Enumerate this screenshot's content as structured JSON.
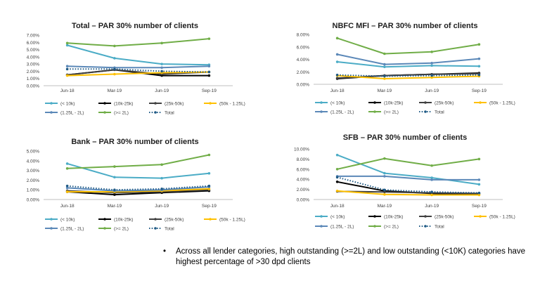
{
  "chart_data": [
    {
      "type": "line",
      "title": "Total – PAR 30% number of clients",
      "categories": [
        "Jun-18",
        "Mar-19",
        "Jun-19",
        "Sep-19"
      ],
      "y_ticks": [
        "0.00%",
        "1.00%",
        "2.00%",
        "3.00%",
        "4.00%",
        "5.00%",
        "6.00%",
        "7.00%"
      ],
      "ylim": [
        0,
        7
      ],
      "series": [
        {
          "name": "(< 10k)",
          "color": "#4bacc6",
          "style": "solid",
          "values": [
            5.6,
            3.8,
            3.0,
            2.9
          ]
        },
        {
          "name": "(10k-25k)",
          "color": "#000000",
          "style": "solid",
          "values": [
            1.5,
            2.2,
            1.4,
            1.4
          ]
        },
        {
          "name": "(25k-50k)",
          "color": "#404040",
          "style": "solid",
          "values": [
            1.5,
            2.2,
            1.6,
            1.9
          ]
        },
        {
          "name": "(50k - 1.25L)",
          "color": "#ffc000",
          "style": "solid",
          "values": [
            1.4,
            1.6,
            1.8,
            1.9
          ]
        },
        {
          "name": "(1.25L - 2L)",
          "color": "#5b88b8",
          "style": "solid",
          "values": [
            2.7,
            2.5,
            2.5,
            2.7
          ]
        },
        {
          "name": "(>= 2L)",
          "color": "#70ad47",
          "style": "solid",
          "values": [
            5.9,
            5.5,
            5.9,
            6.5
          ]
        },
        {
          "name": "Total",
          "color": "#1f5a85",
          "style": "dotted",
          "values": [
            2.3,
            2.3,
            2.0,
            1.9
          ]
        }
      ]
    },
    {
      "type": "line",
      "title": "NBFC MFI – PAR 30% number of clients",
      "categories": [
        "Jun-18",
        "Mar-19",
        "Jun-19",
        "Sep-19"
      ],
      "y_ticks": [
        "0.00%",
        "2.00%",
        "4.00%",
        "6.00%",
        "8.00%"
      ],
      "ylim": [
        0,
        8
      ],
      "series": [
        {
          "name": "(< 10k)",
          "color": "#4bacc6",
          "style": "solid",
          "values": [
            3.6,
            2.8,
            3.0,
            2.9
          ]
        },
        {
          "name": "(10k-25k)",
          "color": "#000000",
          "style": "solid",
          "values": [
            0.9,
            1.4,
            1.6,
            1.8
          ]
        },
        {
          "name": "(25k-50k)",
          "color": "#404040",
          "style": "solid",
          "values": [
            1.0,
            1.4,
            1.6,
            1.7
          ]
        },
        {
          "name": "(50k - 1.25L)",
          "color": "#ffc000",
          "style": "solid",
          "values": [
            1.4,
            0.9,
            1.1,
            1.3
          ]
        },
        {
          "name": "(1.25L - 2L)",
          "color": "#5b88b8",
          "style": "solid",
          "values": [
            4.8,
            3.2,
            3.4,
            4.1
          ]
        },
        {
          "name": "(>= 2L)",
          "color": "#70ad47",
          "style": "solid",
          "values": [
            7.4,
            4.9,
            5.2,
            6.4
          ]
        },
        {
          "name": "Total",
          "color": "#1f5a85",
          "style": "dotted",
          "values": [
            1.5,
            1.3,
            1.4,
            1.5
          ]
        }
      ]
    },
    {
      "type": "line",
      "title": "Bank – PAR 30% number of clients",
      "categories": [
        "Jun-18",
        "Mar-19",
        "Jun-19",
        "Sep-19"
      ],
      "y_ticks": [
        "0.00%",
        "1.00%",
        "2.00%",
        "3.00%",
        "4.00%",
        "5.00%"
      ],
      "ylim": [
        0,
        5
      ],
      "series": [
        {
          "name": "(< 10k)",
          "color": "#4bacc6",
          "style": "solid",
          "values": [
            3.7,
            2.3,
            2.2,
            2.7
          ]
        },
        {
          "name": "(10k-25k)",
          "color": "#000000",
          "style": "solid",
          "values": [
            0.8,
            0.5,
            0.7,
            0.9
          ]
        },
        {
          "name": "(25k-50k)",
          "color": "#404040",
          "style": "solid",
          "values": [
            0.9,
            0.7,
            0.8,
            1.0
          ]
        },
        {
          "name": "(50k - 1.25L)",
          "color": "#ffc000",
          "style": "solid",
          "values": [
            0.8,
            0.8,
            0.9,
            1.1
          ]
        },
        {
          "name": "(1.25L - 2L)",
          "color": "#5b88b8",
          "style": "solid",
          "values": [
            1.2,
            0.9,
            1.0,
            1.3
          ]
        },
        {
          "name": "(>= 2L)",
          "color": "#70ad47",
          "style": "solid",
          "values": [
            3.2,
            3.4,
            3.6,
            4.6
          ]
        },
        {
          "name": "Total",
          "color": "#1f5a85",
          "style": "dotted",
          "values": [
            1.4,
            1.0,
            1.1,
            1.4
          ]
        }
      ]
    },
    {
      "type": "line",
      "title": "SFB – PAR 30% number of clients",
      "categories": [
        "Jun-18",
        "Mar-19",
        "Jun-19",
        "Sep-19"
      ],
      "y_ticks": [
        "0.00%",
        "2.00%",
        "4.00%",
        "6.00%",
        "8.00%",
        "10.00%"
      ],
      "ylim": [
        0,
        10
      ],
      "series": [
        {
          "name": "(< 10k)",
          "color": "#4bacc6",
          "style": "solid",
          "values": [
            8.8,
            5.2,
            4.3,
            3.0
          ]
        },
        {
          "name": "(10k-25k)",
          "color": "#000000",
          "style": "solid",
          "values": [
            3.5,
            1.7,
            1.2,
            1.1
          ]
        },
        {
          "name": "(25k-50k)",
          "color": "#404040",
          "style": "solid",
          "values": [
            1.6,
            1.5,
            1.3,
            1.2
          ]
        },
        {
          "name": "(50k - 1.25L)",
          "color": "#ffc000",
          "style": "solid",
          "values": [
            1.7,
            1.0,
            0.9,
            0.9
          ]
        },
        {
          "name": "(1.25L - 2L)",
          "color": "#5b88b8",
          "style": "solid",
          "values": [
            4.6,
            4.6,
            3.9,
            3.9
          ]
        },
        {
          "name": "(>= 2L)",
          "color": "#70ad47",
          "style": "solid",
          "values": [
            6.0,
            8.1,
            6.7,
            8.0
          ]
        },
        {
          "name": "Total",
          "color": "#1f5a85",
          "style": "dotted",
          "values": [
            4.4,
            1.9,
            1.5,
            1.3
          ]
        }
      ]
    }
  ],
  "note": {
    "bullet": "•",
    "text": "Across all lender categories, high outstanding (>=2L) and low outstanding (<10K) categories have highest percentage of >30 dpd clients"
  }
}
